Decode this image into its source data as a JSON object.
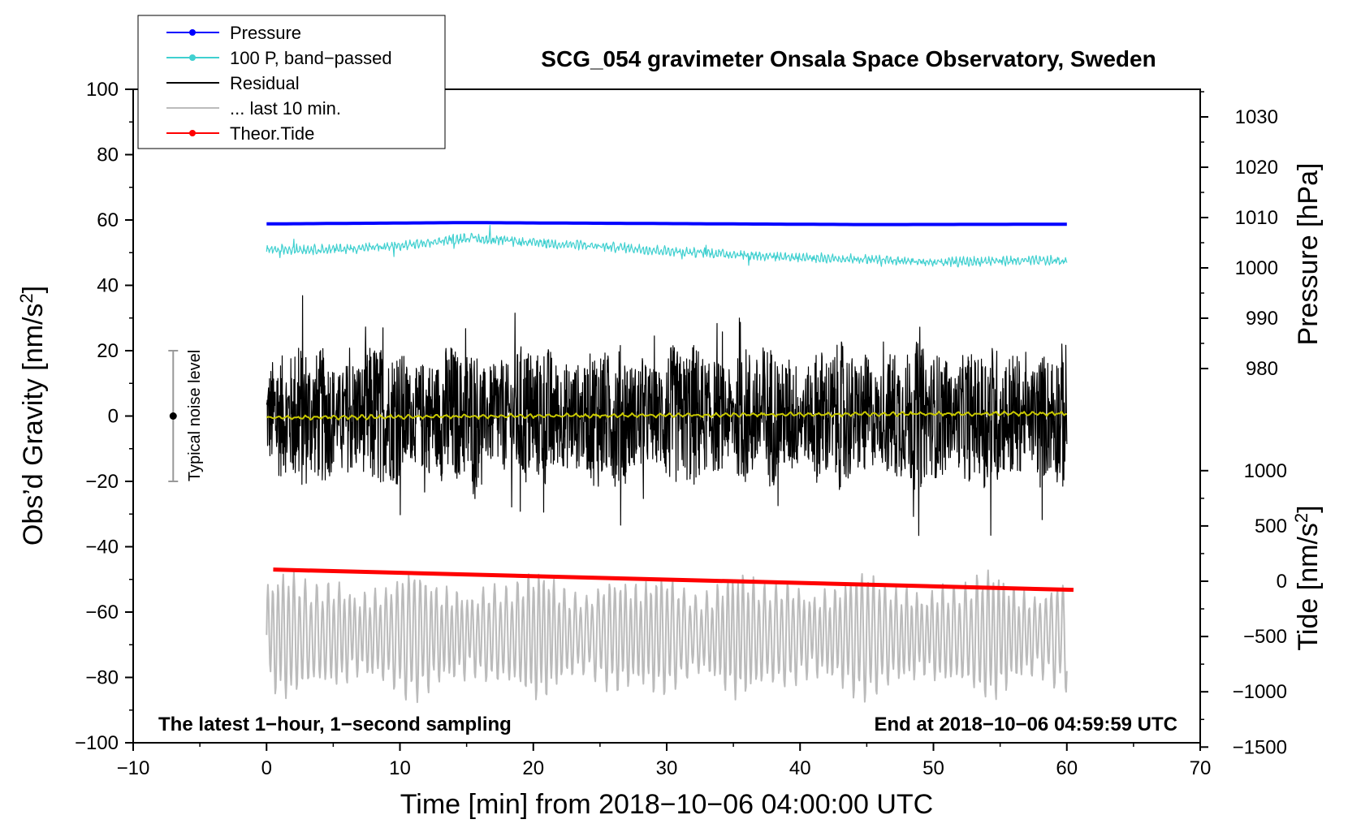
{
  "chart_data": {
    "type": "line",
    "title": "SCG_054 gravimeter Onsala Space Observatory, Sweden",
    "xlabel": "Time [min] from 2018−10−06 04:00:00 UTC",
    "ylabel_left": "Obs’d Gravity [nm/s²]",
    "ylabel_right_top": "Pressure [hPa]",
    "ylabel_right_bottom": "Tide [nm/s²]",
    "xlim": [
      -10,
      70
    ],
    "ylim": [
      -100,
      100
    ],
    "x_ticks": [
      -10,
      0,
      10,
      20,
      30,
      40,
      50,
      60,
      70
    ],
    "x_tick_labels": [
      "−10",
      "0",
      "10",
      "20",
      "30",
      "40",
      "50",
      "60",
      "70"
    ],
    "y_ticks": [
      100,
      80,
      60,
      40,
      20,
      0,
      -20,
      -40,
      -60,
      -80,
      -100
    ],
    "y_tick_labels": [
      "100",
      "80",
      "60",
      "40",
      "20",
      "0",
      "−20",
      "−40",
      "−60",
      "−80",
      "−100"
    ],
    "pressure_axis": {
      "ticks": [
        1030,
        1020,
        1010,
        1000,
        990,
        980
      ],
      "tick_labels": [
        "1030",
        "1020",
        "1010",
        "1000",
        "990",
        "980"
      ]
    },
    "tide_axis": {
      "ticks": [
        1000,
        500,
        0,
        -500,
        -1000,
        -1500
      ],
      "tick_labels": [
        "1000",
        "500",
        "0",
        "−500",
        "−1000",
        "−1500"
      ]
    },
    "legend": [
      {
        "label": "Pressure",
        "color": "#0000ff",
        "marker": true
      },
      {
        "label": "100 P, band−passed",
        "color": "#40d0d0",
        "marker": true
      },
      {
        "label": "Residual",
        "color": "#000000",
        "marker": false
      },
      {
        "label": "... last 10 min.",
        "color": "#bbbbbb",
        "marker": false
      },
      {
        "label": "Theor.Tide",
        "color": "#ff0000",
        "marker": true
      }
    ],
    "series": [
      {
        "name": "Pressure",
        "color": "#0000ff",
        "x": [
          0,
          15,
          30,
          45,
          60
        ],
        "y": [
          58.8,
          59.2,
          58.9,
          58.6,
          58.7
        ]
      },
      {
        "name": "100 P, band−passed",
        "color": "#40d0d0",
        "x": [
          0,
          5,
          10,
          15,
          20,
          25,
          30,
          35,
          40,
          45,
          50,
          55,
          60
        ],
        "y": [
          51,
          51,
          52,
          54.5,
          53,
          52,
          50.5,
          49.5,
          48.5,
          48,
          47,
          47.5,
          47.5
        ]
      },
      {
        "name": "Residual",
        "color": "#000000",
        "x": [
          0,
          60
        ],
        "y": [
          0,
          0
        ],
        "amplitude": 20
      },
      {
        "name": "Residual (smoothed)",
        "color": "#c8c800",
        "x": [
          0,
          20,
          40,
          60
        ],
        "y": [
          -0.5,
          0,
          0.5,
          0.8
        ]
      },
      {
        "name": "... last 10 min.",
        "color": "#bbbbbb",
        "x": [
          0,
          60
        ],
        "y": [
          -67,
          -67
        ],
        "amplitude": 18
      },
      {
        "name": "Theor.Tide",
        "color": "#ff0000",
        "x": [
          0.5,
          60.5
        ],
        "y": [
          -47,
          -53.2
        ]
      }
    ],
    "noise_bar": {
      "x": -7,
      "center": 0,
      "low": -20,
      "high": 20,
      "label": "Typical noise level"
    },
    "annotations": {
      "left": "The latest 1−hour, 1−second sampling",
      "right": "End at 2018−10−06 04:59:59 UTC"
    }
  }
}
